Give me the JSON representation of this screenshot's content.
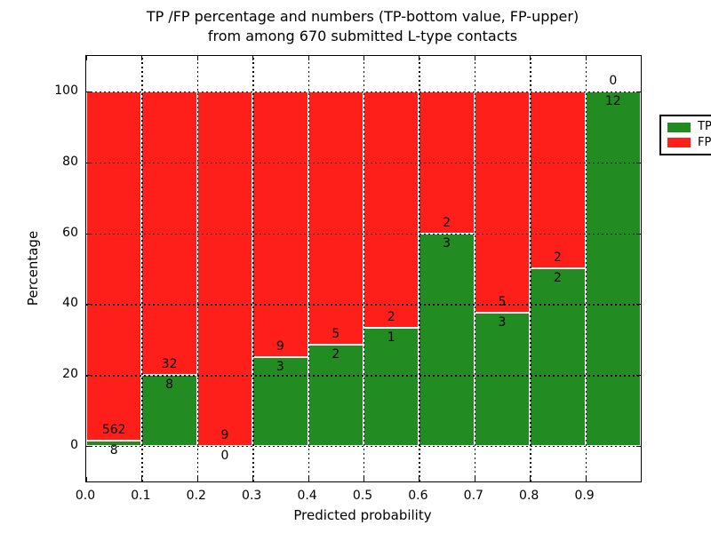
{
  "title": {
    "line1": "TP /FP percentage and numbers (TP-bottom value, FP-upper)",
    "line2": "from among 670 submitted L-type contacts"
  },
  "axes": {
    "xlabel": "Predicted probability",
    "ylabel": "Percentage",
    "xtick_labels": [
      "0.0",
      "0.1",
      "0.2",
      "0.3",
      "0.4",
      "0.5",
      "0.6",
      "0.7",
      "0.8",
      "0.9"
    ],
    "ytick_labels": [
      "0",
      "20",
      "40",
      "60",
      "80",
      "100"
    ]
  },
  "legend": {
    "items": [
      {
        "label": "TP",
        "color": "#228b22"
      },
      {
        "label": "FP",
        "color": "#ff1f1a"
      }
    ]
  },
  "colors": {
    "tp_green": "#228b22",
    "fp_red": "#ff1f1a",
    "grid": "#000000",
    "background": "#ffffff"
  },
  "chart_data": {
    "type": "bar",
    "stacked": true,
    "title": "TP /FP percentage and numbers (TP-bottom value, FP-upper) from among 670 submitted L-type contacts",
    "xlabel": "Predicted probability",
    "ylabel": "Percentage",
    "xlim": [
      0.0,
      1.0
    ],
    "ylim": [
      -10,
      110
    ],
    "grid": true,
    "legend_position": "upper right",
    "total_contacts": 670,
    "bin_width": 0.1,
    "series": [
      {
        "name": "TP",
        "color": "#228b22",
        "counts": [
          8,
          8,
          0,
          3,
          2,
          1,
          3,
          3,
          2,
          12
        ]
      },
      {
        "name": "FP",
        "color": "#ff1f1a",
        "counts": [
          562,
          32,
          9,
          9,
          5,
          2,
          2,
          5,
          2,
          0
        ]
      }
    ],
    "bins": [
      {
        "x_range": [
          0.0,
          0.1
        ],
        "tp_count": 8,
        "fp_count": 562,
        "tp_pct": 1.4,
        "fp_pct": 98.6,
        "fp_label_hidden": false
      },
      {
        "x_range": [
          0.1,
          0.2
        ],
        "tp_count": 8,
        "fp_count": 32,
        "tp_pct": 20.0,
        "fp_pct": 80.0,
        "fp_label_hidden": false
      },
      {
        "x_range": [
          0.2,
          0.3
        ],
        "tp_count": 0,
        "fp_count": 9,
        "tp_pct": 0.0,
        "fp_pct": 100.0,
        "fp_label_hidden": false
      },
      {
        "x_range": [
          0.3,
          0.4
        ],
        "tp_count": 3,
        "fp_count": 9,
        "tp_pct": 25.0,
        "fp_pct": 75.0,
        "fp_label_hidden": false
      },
      {
        "x_range": [
          0.4,
          0.5
        ],
        "tp_count": 2,
        "fp_count": 5,
        "tp_pct": 28.6,
        "fp_pct": 71.4,
        "fp_label_hidden": false
      },
      {
        "x_range": [
          0.5,
          0.6
        ],
        "tp_count": 1,
        "fp_count": 2,
        "tp_pct": 33.3,
        "fp_pct": 66.7,
        "fp_label_hidden": false
      },
      {
        "x_range": [
          0.6,
          0.7
        ],
        "tp_count": 3,
        "fp_count": 2,
        "tp_pct": 60.0,
        "fp_pct": 40.0,
        "fp_label_hidden": false
      },
      {
        "x_range": [
          0.7,
          0.8
        ],
        "tp_count": 3,
        "fp_count": 5,
        "tp_pct": 37.5,
        "fp_pct": 62.5,
        "fp_label_hidden": false
      },
      {
        "x_range": [
          0.8,
          0.9
        ],
        "tp_count": 2,
        "fp_count": 2,
        "tp_pct": 50.0,
        "fp_pct": 50.0,
        "fp_label_hidden": false
      },
      {
        "x_range": [
          0.9,
          1.0
        ],
        "tp_count": 12,
        "fp_count": 0,
        "tp_pct": 100.0,
        "fp_pct": 0.0,
        "fp_label_hidden": true
      }
    ]
  }
}
